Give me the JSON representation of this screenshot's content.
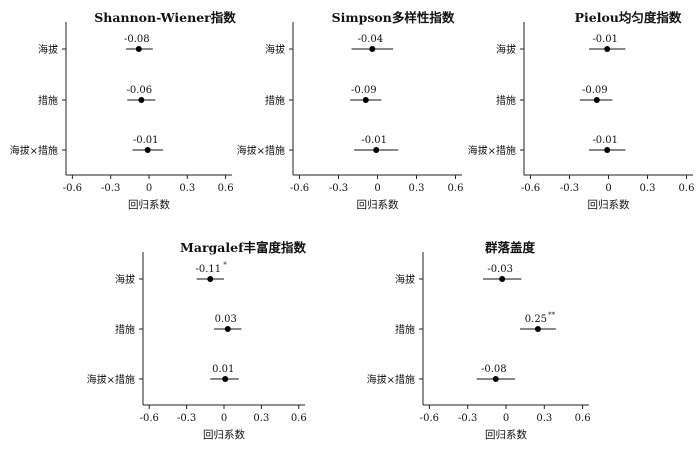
{
  "chart_data": [
    {
      "type": "forest",
      "title": "Shannon-Wiener指数",
      "xlabel": "回归系数",
      "categories": [
        "海拔",
        "措施",
        "海拔×措施"
      ],
      "values": [
        -0.08,
        -0.06,
        -0.01
      ],
      "ci_low": [
        -0.18,
        -0.17,
        -0.13
      ],
      "ci_high": [
        0.03,
        0.05,
        0.11
      ],
      "labels": [
        "-0.08",
        "-0.06",
        "-0.01"
      ],
      "significance": [
        "",
        "",
        ""
      ],
      "xlim": [
        -0.65,
        0.65
      ],
      "xticks": [
        -0.6,
        -0.3,
        0,
        0.3,
        0.6
      ],
      "xtick_labels": [
        "-0.6",
        "-0.3",
        "0",
        "0.3",
        "0.6"
      ]
    },
    {
      "type": "forest",
      "title": "Simpson多样性指数",
      "xlabel": "回归系数",
      "categories": [
        "海拔",
        "措施",
        "海拔×措施"
      ],
      "values": [
        -0.04,
        -0.09,
        -0.01
      ],
      "ci_low": [
        -0.2,
        -0.21,
        -0.18
      ],
      "ci_high": [
        0.12,
        0.03,
        0.16
      ],
      "labels": [
        "-0.04",
        "-0.09",
        "-0.01"
      ],
      "significance": [
        "",
        "",
        ""
      ],
      "xlim": [
        -0.65,
        0.65
      ],
      "xticks": [
        -0.6,
        -0.3,
        0,
        0.3,
        0.6
      ],
      "xtick_labels": [
        "-0.6",
        "-0.3",
        "0",
        "0.3",
        "0.6"
      ]
    },
    {
      "type": "forest",
      "title": "Pielou均匀度指数",
      "xlabel": "回归系数",
      "categories": [
        "海拔",
        "措施",
        "海拔×措施"
      ],
      "values": [
        -0.01,
        -0.09,
        -0.01
      ],
      "ci_low": [
        -0.15,
        -0.22,
        -0.15
      ],
      "ci_high": [
        0.13,
        0.03,
        0.13
      ],
      "labels": [
        "-0.01",
        "-0.09",
        "-0.01"
      ],
      "significance": [
        "",
        "",
        ""
      ],
      "xlim": [
        -0.65,
        0.65
      ],
      "xticks": [
        -0.6,
        -0.3,
        0,
        0.3,
        0.6
      ],
      "xtick_labels": [
        "-0.6",
        "-0.3",
        "0",
        "0.3",
        "0.6"
      ]
    },
    {
      "type": "forest",
      "title": "Margalef丰富度指数",
      "xlabel": "回归系数",
      "categories": [
        "海拔",
        "措施",
        "海拔×措施"
      ],
      "values": [
        -0.11,
        0.03,
        0.01
      ],
      "ci_low": [
        -0.22,
        -0.08,
        -0.11
      ],
      "ci_high": [
        0.0,
        0.14,
        0.12
      ],
      "labels": [
        "-0.11",
        "0.03",
        "0.01"
      ],
      "significance": [
        "*",
        "",
        ""
      ],
      "xlim": [
        -0.65,
        0.65
      ],
      "xticks": [
        -0.6,
        -0.3,
        0,
        0.3,
        0.6
      ],
      "xtick_labels": [
        "-0.6",
        "-0.3",
        "0",
        "0.3",
        "0.6"
      ]
    },
    {
      "type": "forest",
      "title": "群落盖度",
      "xlabel": "回归系数",
      "categories": [
        "海拔",
        "措施",
        "海拔×措施"
      ],
      "values": [
        -0.03,
        0.25,
        -0.08
      ],
      "ci_low": [
        -0.18,
        0.11,
        -0.23
      ],
      "ci_high": [
        0.12,
        0.39,
        0.07
      ],
      "labels": [
        "-0.03",
        "0.25",
        "-0.08"
      ],
      "significance": [
        "",
        "**",
        ""
      ],
      "xlim": [
        -0.65,
        0.65
      ],
      "xticks": [
        -0.6,
        -0.3,
        0,
        0.3,
        0.6
      ],
      "xtick_labels": [
        "-0.6",
        "-0.3",
        "0",
        "0.3",
        "0.6"
      ]
    }
  ]
}
